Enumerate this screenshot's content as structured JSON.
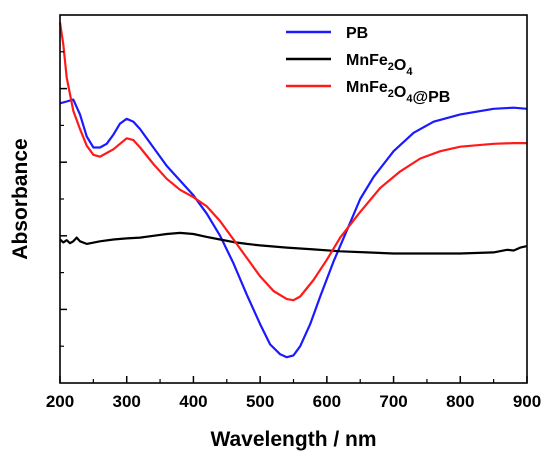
{
  "chart_data": {
    "type": "line",
    "title": "",
    "xlabel": "Wavelength / nm",
    "ylabel": "Absorbance",
    "xlim": [
      200,
      900
    ],
    "x_ticks": [
      "200",
      "300",
      "400",
      "500",
      "600",
      "700",
      "800",
      "900"
    ],
    "y_tick_labels_shown": false,
    "grid": false,
    "legend_position": "top-right",
    "series": [
      {
        "name": "PB",
        "legend_parts": [
          {
            "t": "PB",
            "sub": false
          }
        ],
        "color": "#1a1aff",
        "points": [
          [
            200,
            0.76
          ],
          [
            210,
            0.765
          ],
          [
            220,
            0.77
          ],
          [
            230,
            0.73
          ],
          [
            240,
            0.67
          ],
          [
            250,
            0.64
          ],
          [
            260,
            0.64
          ],
          [
            270,
            0.65
          ],
          [
            280,
            0.675
          ],
          [
            290,
            0.705
          ],
          [
            300,
            0.718
          ],
          [
            310,
            0.71
          ],
          [
            320,
            0.69
          ],
          [
            340,
            0.64
          ],
          [
            360,
            0.59
          ],
          [
            380,
            0.55
          ],
          [
            400,
            0.51
          ],
          [
            420,
            0.46
          ],
          [
            440,
            0.4
          ],
          [
            460,
            0.325
          ],
          [
            480,
            0.24
          ],
          [
            500,
            0.16
          ],
          [
            515,
            0.105
          ],
          [
            530,
            0.078
          ],
          [
            540,
            0.07
          ],
          [
            550,
            0.075
          ],
          [
            560,
            0.1
          ],
          [
            575,
            0.16
          ],
          [
            590,
            0.235
          ],
          [
            610,
            0.33
          ],
          [
            630,
            0.415
          ],
          [
            650,
            0.5
          ],
          [
            670,
            0.56
          ],
          [
            700,
            0.63
          ],
          [
            730,
            0.68
          ],
          [
            760,
            0.71
          ],
          [
            800,
            0.73
          ],
          [
            850,
            0.745
          ],
          [
            880,
            0.748
          ],
          [
            900,
            0.745
          ]
        ]
      },
      {
        "name": "MnFe2O4",
        "legend_parts": [
          {
            "t": "MnFe",
            "sub": false
          },
          {
            "t": "2",
            "sub": true
          },
          {
            "t": "O",
            "sub": false
          },
          {
            "t": "4",
            "sub": true
          }
        ],
        "color": "#000000",
        "points": [
          [
            200,
            0.39
          ],
          [
            205,
            0.382
          ],
          [
            210,
            0.388
          ],
          [
            215,
            0.38
          ],
          [
            220,
            0.385
          ],
          [
            225,
            0.395
          ],
          [
            230,
            0.385
          ],
          [
            240,
            0.378
          ],
          [
            260,
            0.385
          ],
          [
            280,
            0.39
          ],
          [
            300,
            0.393
          ],
          [
            320,
            0.395
          ],
          [
            340,
            0.4
          ],
          [
            360,
            0.405
          ],
          [
            380,
            0.408
          ],
          [
            400,
            0.405
          ],
          [
            420,
            0.397
          ],
          [
            440,
            0.39
          ],
          [
            460,
            0.383
          ],
          [
            480,
            0.378
          ],
          [
            500,
            0.374
          ],
          [
            540,
            0.368
          ],
          [
            580,
            0.363
          ],
          [
            620,
            0.358
          ],
          [
            660,
            0.355
          ],
          [
            700,
            0.352
          ],
          [
            750,
            0.352
          ],
          [
            800,
            0.352
          ],
          [
            850,
            0.355
          ],
          [
            870,
            0.362
          ],
          [
            880,
            0.36
          ],
          [
            890,
            0.368
          ],
          [
            900,
            0.372
          ]
        ]
      },
      {
        "name": "MnFe2O4@PB",
        "legend_parts": [
          {
            "t": "MnFe",
            "sub": false
          },
          {
            "t": "2",
            "sub": true
          },
          {
            "t": "O",
            "sub": false
          },
          {
            "t": "4",
            "sub": true
          },
          {
            "t": "@PB",
            "sub": false
          }
        ],
        "color": "#ff1a1a",
        "points": [
          [
            200,
            0.98
          ],
          [
            205,
            0.92
          ],
          [
            210,
            0.83
          ],
          [
            220,
            0.74
          ],
          [
            230,
            0.69
          ],
          [
            240,
            0.645
          ],
          [
            250,
            0.62
          ],
          [
            260,
            0.615
          ],
          [
            270,
            0.625
          ],
          [
            280,
            0.635
          ],
          [
            290,
            0.65
          ],
          [
            300,
            0.665
          ],
          [
            310,
            0.66
          ],
          [
            320,
            0.64
          ],
          [
            340,
            0.595
          ],
          [
            360,
            0.555
          ],
          [
            380,
            0.525
          ],
          [
            400,
            0.505
          ],
          [
            420,
            0.48
          ],
          [
            440,
            0.44
          ],
          [
            460,
            0.39
          ],
          [
            480,
            0.34
          ],
          [
            500,
            0.29
          ],
          [
            520,
            0.25
          ],
          [
            540,
            0.228
          ],
          [
            550,
            0.225
          ],
          [
            560,
            0.235
          ],
          [
            580,
            0.28
          ],
          [
            600,
            0.335
          ],
          [
            620,
            0.395
          ],
          [
            650,
            0.465
          ],
          [
            680,
            0.53
          ],
          [
            710,
            0.575
          ],
          [
            740,
            0.61
          ],
          [
            770,
            0.63
          ],
          [
            800,
            0.642
          ],
          [
            850,
            0.65
          ],
          [
            880,
            0.652
          ],
          [
            900,
            0.652
          ]
        ]
      }
    ]
  }
}
